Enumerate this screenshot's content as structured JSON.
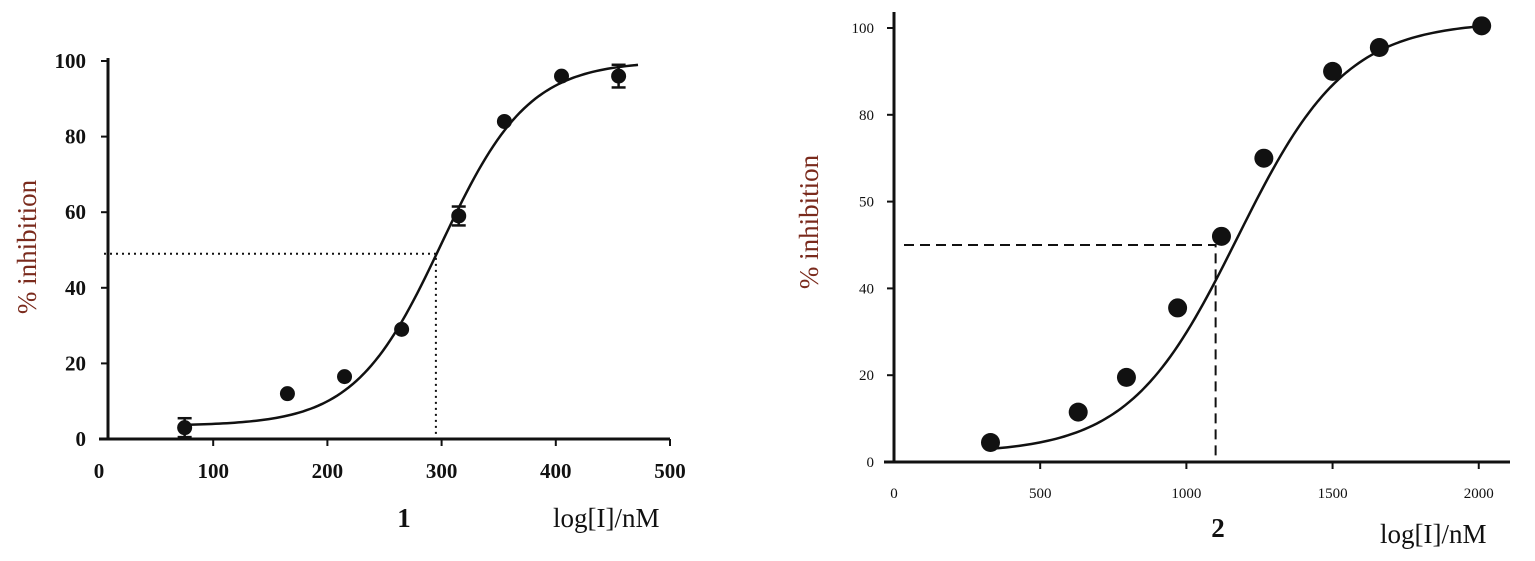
{
  "chart_data": [
    {
      "type": "scatter",
      "panel_label": "1",
      "xlabel": "log[I]/nM",
      "ylabel": "% inhibition",
      "xlim": [
        0,
        500
      ],
      "ylim": [
        0,
        100
      ],
      "x_ticks": [
        "0",
        "100",
        "200",
        "300",
        "400",
        "500"
      ],
      "y_ticks": [
        "0",
        "20",
        "40",
        "60",
        "80",
        "100"
      ],
      "points": [
        {
          "x": 75,
          "y": 3,
          "err": 2.5
        },
        {
          "x": 165,
          "y": 12
        },
        {
          "x": 215,
          "y": 16.5
        },
        {
          "x": 265,
          "y": 29
        },
        {
          "x": 315,
          "y": 59,
          "err": 2.5
        },
        {
          "x": 355,
          "y": 84
        },
        {
          "x": 405,
          "y": 96
        },
        {
          "x": 455,
          "y": 96,
          "err": 3
        }
      ],
      "fit_curve": {
        "model": "sigmoid",
        "bottom": 3.5,
        "top": 100,
        "x50": 300,
        "slope": 38,
        "x_range": [
          72,
          472
        ]
      },
      "guide_line": {
        "style": "dotted",
        "x": 295,
        "y": 49
      }
    },
    {
      "type": "scatter",
      "panel_label": "2",
      "xlabel": "log[I]/nM",
      "ylabel": "% inhibition",
      "xlim": [
        0,
        2100
      ],
      "ylim": [
        0,
        100
      ],
      "x_ticks": [
        "0",
        "500",
        "1000",
        "1500",
        "2000"
      ],
      "y_ticks": [
        "0",
        "20",
        "40",
        "50",
        "80",
        "100"
      ],
      "points": [
        {
          "x": 330,
          "y": 4.5
        },
        {
          "x": 630,
          "y": 11.5
        },
        {
          "x": 795,
          "y": 19.5
        },
        {
          "x": 970,
          "y": 35.5
        },
        {
          "x": 1120,
          "y": 52
        },
        {
          "x": 1265,
          "y": 70
        },
        {
          "x": 1500,
          "y": 90
        },
        {
          "x": 1660,
          "y": 95.5
        },
        {
          "x": 2010,
          "y": 100.5
        }
      ],
      "fit_curve": {
        "model": "sigmoid",
        "bottom": 2,
        "top": 101.5,
        "x50": 1175,
        "slope": 185,
        "x_range": [
          330,
          2010
        ]
      },
      "guide_line": {
        "style": "dashed",
        "x": 1100,
        "y": 50
      }
    }
  ]
}
